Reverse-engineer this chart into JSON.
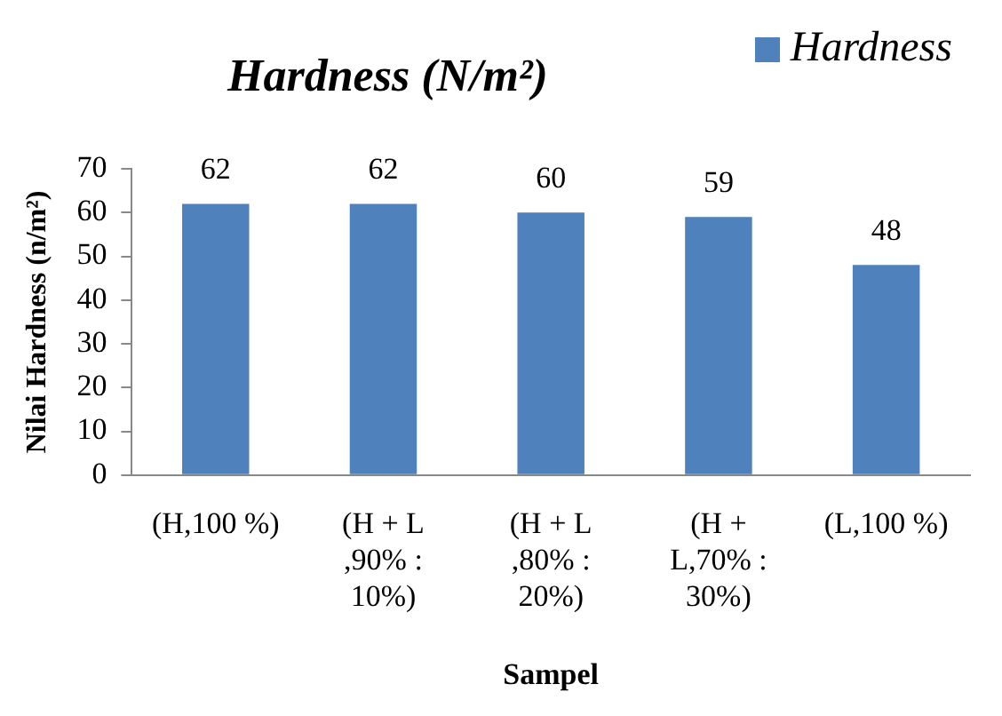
{
  "chart_data": {
    "type": "bar",
    "title": "Hardness (N/m²)",
    "xlabel": "Sampel",
    "ylabel": "Nilai Hardness (n/m²)",
    "categories": [
      "(H,100 %)",
      "(H + L ,90% : 10%)",
      "(H + L ,80% : 20%)",
      "(H + L,70% : 30%)",
      "(L,100 %)"
    ],
    "series": [
      {
        "name": "Hardness",
        "color": "#4f81bd",
        "values": [
          62,
          62,
          60,
          59,
          48
        ]
      }
    ],
    "ylim": [
      0,
      70
    ],
    "yticks": [
      0,
      10,
      20,
      30,
      40,
      50,
      60,
      70
    ],
    "grid": false,
    "legend": "top right",
    "data_labels": true
  }
}
